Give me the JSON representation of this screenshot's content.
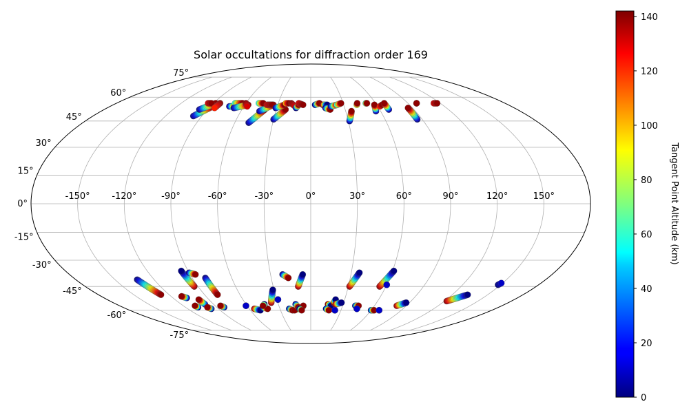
{
  "chart_data": {
    "type": "scatter",
    "projection": "mollweide",
    "title": "Solar occultations for diffraction order 169",
    "lon_ticks": [
      -150,
      -120,
      -90,
      -60,
      -30,
      0,
      30,
      60,
      90,
      120,
      150
    ],
    "lon_tick_labels": [
      "-150°",
      "-120°",
      "-90°",
      "-60°",
      "-30°",
      "0°",
      "30°",
      "60°",
      "90°",
      "120°",
      "150°"
    ],
    "lat_ticks": [
      -75,
      -60,
      -45,
      -30,
      -15,
      0,
      15,
      30,
      45,
      60,
      75
    ],
    "lat_tick_labels": [
      "-75°",
      "-60°",
      "-45°",
      "-30°",
      "-15°",
      "0°",
      "15°",
      "30°",
      "45°",
      "60°",
      "75°"
    ],
    "grid": true,
    "colormap": "jet",
    "colorbar": {
      "label": "Tangent Point Altitude (km)",
      "range": [
        0,
        142
      ],
      "ticks": [
        0,
        20,
        40,
        60,
        80,
        100,
        120,
        140
      ],
      "tick_labels": [
        "0",
        "20",
        "40",
        "60",
        "80",
        "100",
        "120",
        "140"
      ]
    },
    "tracks": [
      {
        "lon": [
          -97,
          -88
        ],
        "lat": [
          48,
          54
        ],
        "alt": [
          0,
          140
        ]
      },
      {
        "lon": [
          -97,
          -88
        ],
        "lat": [
          52,
          56
        ],
        "alt": [
          0,
          140
        ]
      },
      {
        "lon": [
          -95,
          -92
        ],
        "lat": [
          56,
          56
        ],
        "alt": [
          130,
          140
        ]
      },
      {
        "lon": [
          -84,
          -85
        ],
        "lat": [
          56,
          53
        ],
        "alt": [
          140,
          120
        ]
      },
      {
        "lon": [
          -73,
          -67
        ],
        "lat": [
          54,
          54
        ],
        "alt": [
          0,
          140
        ]
      },
      {
        "lon": [
          -70,
          -63
        ],
        "lat": [
          56,
          56
        ],
        "alt": [
          60,
          140
        ]
      },
      {
        "lon": [
          -68,
          -57
        ],
        "lat": [
          53,
          55
        ],
        "alt": [
          0,
          140
        ]
      },
      {
        "lon": [
          -60,
          -57
        ],
        "lat": [
          56,
          54
        ],
        "alt": [
          140,
          130
        ]
      },
      {
        "lon": [
          -49,
          -40
        ],
        "lat": [
          44,
          52
        ],
        "alt": [
          0,
          140
        ]
      },
      {
        "lon": [
          -44,
          -34
        ],
        "lat": [
          51,
          55
        ],
        "alt": [
          0,
          140
        ]
      },
      {
        "lon": [
          -48,
          -44
        ],
        "lat": [
          56,
          56
        ],
        "alt": [
          60,
          140
        ]
      },
      {
        "lon": [
          -40,
          -35
        ],
        "lat": [
          55,
          55
        ],
        "alt": [
          130,
          140
        ]
      },
      {
        "lon": [
          -30,
          -22
        ],
        "lat": [
          46,
          52
        ],
        "alt": [
          0,
          140
        ]
      },
      {
        "lon": [
          -31,
          -24
        ],
        "lat": [
          53,
          55
        ],
        "alt": [
          0,
          140
        ]
      },
      {
        "lon": [
          -23,
          -20
        ],
        "lat": [
          56,
          56
        ],
        "alt": [
          100,
          140
        ]
      },
      {
        "lon": [
          -18,
          -14
        ],
        "lat": [
          56,
          54
        ],
        "alt": [
          140,
          130
        ]
      },
      {
        "lon": [
          -13,
          -11
        ],
        "lat": [
          53,
          55
        ],
        "alt": [
          0,
          140
        ]
      },
      {
        "lon": [
          -11,
          -7
        ],
        "lat": [
          56,
          55
        ],
        "alt": [
          130,
          140
        ]
      },
      {
        "lon": [
          4,
          8
        ],
        "lat": [
          55,
          56
        ],
        "alt": [
          0,
          140
        ]
      },
      {
        "lon": [
          11,
          15
        ],
        "lat": [
          55,
          55
        ],
        "alt": [
          140,
          0
        ]
      },
      {
        "lon": [
          13,
          17
        ],
        "lat": [
          53,
          52
        ],
        "alt": [
          0,
          140
        ]
      },
      {
        "lon": [
          18,
          24
        ],
        "lat": [
          54,
          55
        ],
        "alt": [
          0,
          140
        ]
      },
      {
        "lon": [
          24,
          28
        ],
        "lat": [
          55,
          56
        ],
        "alt": [
          60,
          140
        ]
      },
      {
        "lon": [
          31,
          35
        ],
        "lat": [
          45,
          51
        ],
        "alt": [
          0,
          140
        ]
      },
      {
        "lon": [
          42,
          43
        ],
        "lat": [
          55,
          56
        ],
        "alt": [
          80,
          140
        ]
      },
      {
        "lon": [
          51,
          52
        ],
        "lat": [
          56,
          56
        ],
        "alt": [
          60,
          140
        ]
      },
      {
        "lon": [
          56,
          58
        ],
        "lat": [
          51,
          55
        ],
        "alt": [
          0,
          140
        ]
      },
      {
        "lon": [
          62,
          65
        ],
        "lat": [
          54,
          55
        ],
        "alt": [
          120,
          140
        ]
      },
      {
        "lon": [
          68,
          68
        ],
        "lat": [
          52,
          56
        ],
        "alt": [
          0,
          140
        ]
      },
      {
        "lon": [
          86,
          86
        ],
        "lat": [
          46,
          53
        ],
        "alt": [
          0,
          140
        ]
      },
      {
        "lon": [
          98,
          98
        ],
        "lat": [
          56,
          56
        ],
        "alt": [
          120,
          140
        ]
      },
      {
        "lon": [
          114,
          117
        ],
        "lat": [
          56,
          56
        ],
        "alt": [
          130,
          140
        ]
      },
      {
        "lon": [
          -133,
          -127
        ],
        "lat": [
          -41,
          -50
        ],
        "alt": [
          0,
          140
        ]
      },
      {
        "lon": [
          -108,
          -111
        ],
        "lat": [
          -52,
          -51
        ],
        "alt": [
          0,
          140
        ]
      },
      {
        "lon": [
          -108,
          -109
        ],
        "lat": [
          -58,
          -57
        ],
        "alt": [
          0,
          140
        ]
      },
      {
        "lon": [
          -98,
          -99
        ],
        "lat": [
          -56,
          -53
        ],
        "alt": [
          0,
          140
        ]
      },
      {
        "lon": [
          -97,
          -99
        ],
        "lat": [
          -59,
          -58
        ],
        "alt": [
          0,
          140
        ]
      },
      {
        "lon": [
          -93,
          -95
        ],
        "lat": [
          -45,
          -36
        ],
        "alt": [
          140,
          0
        ]
      },
      {
        "lon": [
          -90,
          -86
        ],
        "lat": [
          -37,
          -38
        ],
        "alt": [
          0,
          140
        ]
      },
      {
        "lon": [
          -83,
          -85
        ],
        "lat": [
          -58,
          -57
        ],
        "alt": [
          0,
          140
        ]
      },
      {
        "lon": [
          -80,
          -79
        ],
        "lat": [
          -40,
          -50
        ],
        "alt": [
          0,
          140
        ]
      },
      {
        "lon": [
          -61,
          -61
        ],
        "lat": [
          -57,
          -57
        ],
        "alt": [
          0,
          10
        ]
      },
      {
        "lon": [
          -55,
          -50
        ],
        "lat": [
          -59,
          -60
        ],
        "alt": [
          140,
          0
        ]
      },
      {
        "lon": [
          -46,
          -42
        ],
        "lat": [
          -58,
          -59
        ],
        "alt": [
          0,
          140
        ]
      },
      {
        "lon": [
          -43,
          -45
        ],
        "lat": [
          -56,
          -57
        ],
        "alt": [
          0,
          140
        ]
      },
      {
        "lon": [
          -36,
          -31
        ],
        "lat": [
          -55,
          -47
        ],
        "alt": [
          140,
          0
        ]
      },
      {
        "lon": [
          -29,
          -29
        ],
        "lat": [
          -53,
          -53
        ],
        "alt": [
          0,
          10
        ]
      },
      {
        "lon": [
          -21,
          -17
        ],
        "lat": [
          -38,
          -40
        ],
        "alt": [
          0,
          140
        ]
      },
      {
        "lon": [
          -21,
          -18
        ],
        "lat": [
          -59,
          -60
        ],
        "alt": [
          0,
          140
        ]
      },
      {
        "lon": [
          -13,
          -16
        ],
        "lat": [
          -59,
          -60
        ],
        "alt": [
          0,
          140
        ]
      },
      {
        "lon": [
          -14,
          -12
        ],
        "lat": [
          -56,
          -58
        ],
        "alt": [
          0,
          140
        ]
      },
      {
        "lon": [
          -8,
          -7
        ],
        "lat": [
          -58,
          -57
        ],
        "alt": [
          0,
          140
        ]
      },
      {
        "lon": [
          -10,
          -6
        ],
        "lat": [
          -45,
          -38
        ],
        "alt": [
          140,
          0
        ]
      },
      {
        "lon": [
          -11,
          -9
        ],
        "lat": [
          -59,
          -60
        ],
        "alt": [
          0,
          140
        ]
      },
      {
        "lon": [
          16,
          19
        ],
        "lat": [
          -56,
          -57
        ],
        "alt": [
          140,
          0
        ]
      },
      {
        "lon": [
          15,
          18
        ],
        "lat": [
          -59,
          -60
        ],
        "alt": [
          0,
          140
        ]
      },
      {
        "lon": [
          21,
          22
        ],
        "lat": [
          -55,
          -53
        ],
        "alt": [
          140,
          0
        ]
      },
      {
        "lon": [
          23,
          28
        ],
        "lat": [
          -56,
          -55
        ],
        "alt": [
          140,
          0
        ]
      },
      {
        "lon": [
          24,
          24
        ],
        "lat": [
          -60,
          -60
        ],
        "alt": [
          0,
          10
        ]
      },
      {
        "lon": [
          31,
          36
        ],
        "lat": [
          -45,
          -37
        ],
        "alt": [
          140,
          0
        ]
      },
      {
        "lon": [
          42,
          45
        ],
        "lat": [
          -57,
          -57
        ],
        "alt": [
          0,
          140
        ]
      },
      {
        "lon": [
          45,
          45
        ],
        "lat": [
          -59,
          -59
        ],
        "alt": [
          0,
          10
        ]
      },
      {
        "lon": [
          55,
          61
        ],
        "lat": [
          -45,
          -36
        ],
        "alt": [
          140,
          0
        ]
      },
      {
        "lon": [
          60,
          60
        ],
        "lat": [
          -44,
          -44
        ],
        "alt": [
          0,
          10
        ]
      },
      {
        "lon": [
          60,
          63
        ],
        "lat": [
          -60,
          -60
        ],
        "alt": [
          0,
          140
        ]
      },
      {
        "lon": [
          68,
          68
        ],
        "lat": [
          -60,
          -60
        ],
        "alt": [
          0,
          10
        ]
      },
      {
        "lon": [
          81,
          87
        ],
        "lat": [
          -57,
          -55
        ],
        "alt": [
          140,
          0
        ]
      },
      {
        "lon": [
          122,
          133
        ],
        "lat": [
          -54,
          -50
        ],
        "alt": [
          140,
          0
        ]
      },
      {
        "lon": [
          148,
          149
        ],
        "lat": [
          -44,
          -43
        ],
        "alt": [
          0,
          10
        ]
      }
    ]
  }
}
